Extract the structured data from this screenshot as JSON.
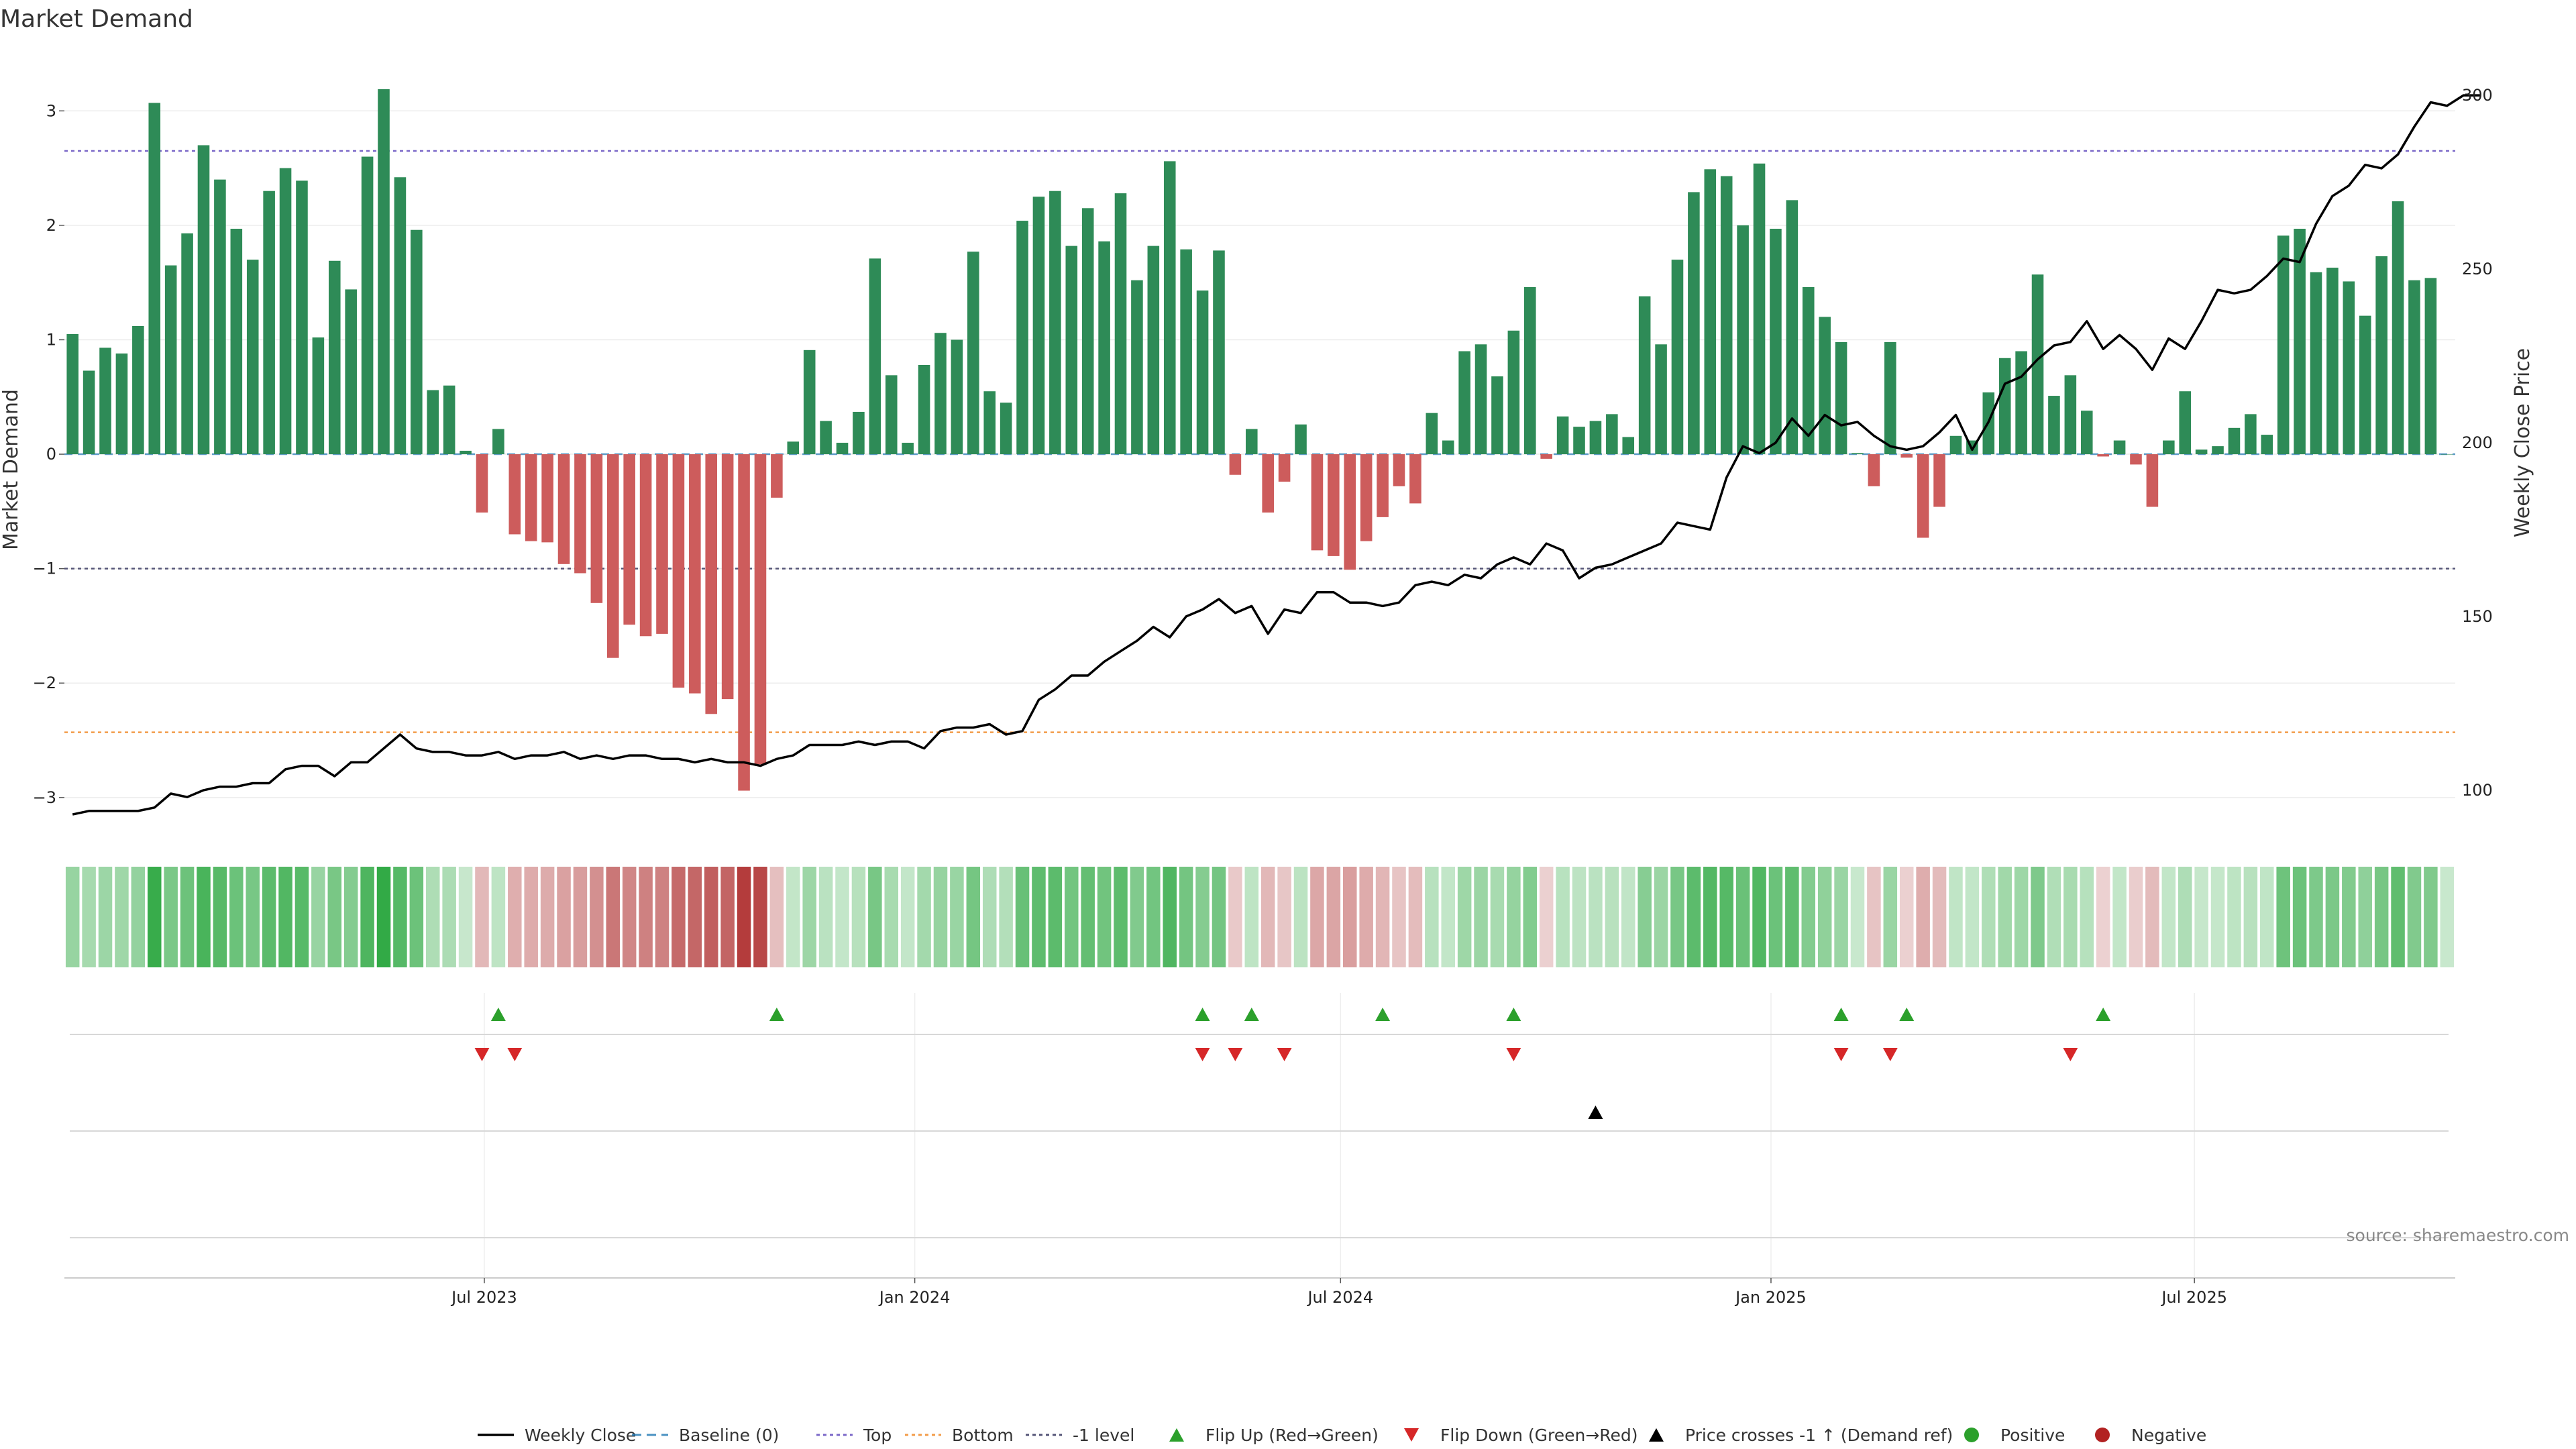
{
  "chart_data": {
    "type": "bar",
    "title": "Market Demand",
    "ylabel": "Market Demand",
    "y2label": "Weekly Close Price",
    "ylim": [
      -3.3,
      3.5
    ],
    "y2lim": [
      88,
      312
    ],
    "yticks": [
      -3,
      -2,
      -1,
      0,
      1,
      2,
      3
    ],
    "yticklabels": [
      "−3",
      "−2",
      "−1",
      "0",
      "1",
      "2",
      "3"
    ],
    "y2ticks": [
      100,
      150,
      200,
      250,
      300
    ],
    "y2ticklabels": [
      "100",
      "150",
      "200",
      "250",
      "300"
    ],
    "date_range": [
      "2023-01-06",
      "2025-10-17"
    ],
    "xticks": [
      {
        "date": "2023-07-01",
        "label": "Jul 2023"
      },
      {
        "date": "2024-01-01",
        "label": "Jan 2024"
      },
      {
        "date": "2024-07-01",
        "label": "Jul 2024"
      },
      {
        "date": "2025-01-01",
        "label": "Jan 2025"
      },
      {
        "date": "2025-07-01",
        "label": "Jul 2025"
      }
    ],
    "levels": {
      "baseline": 0,
      "top": 2.65,
      "bottom": -2.43,
      "minus_one": -1
    },
    "weeks": 146,
    "series": [
      {
        "name": "Market Demand",
        "values": [
          1.05,
          0.73,
          0.93,
          0.88,
          1.12,
          3.07,
          1.65,
          1.93,
          2.7,
          2.4,
          1.97,
          1.7,
          2.3,
          2.5,
          2.39,
          1.02,
          1.69,
          1.44,
          2.6,
          3.19,
          2.42,
          1.96,
          0.56,
          0.6,
          0.03,
          -0.51,
          0.22,
          -0.7,
          -0.76,
          -0.77,
          -0.96,
          -1.04,
          -1.3,
          -1.78,
          -1.49,
          -1.59,
          -1.57,
          -2.04,
          -2.09,
          -2.27,
          -2.14,
          -2.94,
          -2.71,
          -0.38,
          0.11,
          0.91,
          0.29,
          0.1,
          0.37,
          1.71,
          0.69,
          0.1,
          0.78,
          1.06,
          1.0,
          1.77,
          0.55,
          0.45,
          2.04,
          2.25,
          2.3,
          1.82,
          2.15,
          1.86,
          2.28,
          1.52,
          1.82,
          2.56,
          1.79,
          1.43,
          1.78,
          -0.18,
          0.22,
          -0.51,
          -0.24,
          0.26,
          -0.84,
          -0.89,
          -1.01,
          -0.76,
          -0.55,
          -0.28,
          -0.43,
          0.36,
          0.12,
          0.9,
          0.96,
          0.68,
          1.08,
          1.46,
          -0.04,
          0.33,
          0.24,
          0.29,
          0.35,
          0.15,
          1.38,
          0.96,
          1.7,
          2.29,
          2.49,
          2.43,
          2.0,
          2.54,
          1.97,
          2.22,
          1.46,
          1.2,
          0.98,
          0.01,
          -0.28,
          0.98,
          -0.03,
          -0.73,
          -0.46,
          0.16,
          0.12,
          0.54,
          0.84,
          0.9,
          1.57,
          0.51,
          0.69,
          0.38,
          -0.02,
          0.12,
          -0.09,
          -0.46,
          0.12,
          0.55,
          0.04,
          0.07,
          0.23,
          0.35,
          0.17,
          1.91,
          1.97,
          1.59,
          1.63,
          1.51,
          1.21,
          1.73,
          2.21,
          1.52,
          1.54,
          0.0
        ]
      },
      {
        "name": "Weekly Close",
        "values": [
          93,
          94,
          94,
          94,
          94,
          95,
          99,
          98,
          100,
          101,
          101,
          102,
          102,
          106,
          107,
          107,
          104,
          108,
          108,
          112,
          116,
          112,
          111,
          111,
          110,
          110,
          111,
          109,
          110,
          110,
          111,
          109,
          110,
          109,
          110,
          110,
          109,
          109,
          108,
          109,
          108,
          108,
          107,
          109,
          110,
          113,
          113,
          113,
          114,
          113,
          114,
          114,
          112,
          117,
          118,
          118,
          119,
          116,
          117,
          126,
          129,
          133,
          133,
          137,
          140,
          143,
          147,
          144,
          150,
          152,
          155,
          151,
          153,
          145,
          152,
          151,
          157,
          157,
          154,
          154,
          153,
          154,
          159,
          160,
          159,
          162,
          161,
          165,
          167,
          165,
          171,
          169,
          161,
          164,
          165,
          167,
          169,
          171,
          177,
          176,
          175,
          190,
          199,
          197,
          200,
          207,
          202,
          208,
          205,
          206,
          202,
          199,
          198,
          199,
          203,
          208,
          198,
          206,
          217,
          219,
          224,
          228,
          229,
          235,
          227,
          231,
          227,
          221,
          230,
          227,
          235,
          244,
          243,
          244,
          248,
          253,
          252,
          263,
          271,
          274,
          280,
          279,
          283,
          291,
          298,
          297,
          300,
          300
        ]
      }
    ],
    "flip_up_weeks": [
      26,
      43,
      69,
      72,
      80,
      88,
      108,
      112,
      124
    ],
    "flip_down_weeks": [
      25,
      27,
      69,
      71,
      74,
      88,
      108,
      111,
      122
    ],
    "price_cross_weeks": [
      93
    ],
    "legend": [
      {
        "label": "Weekly Close",
        "kind": "line",
        "color": "#000000"
      },
      {
        "label": "Baseline (0)",
        "kind": "dash",
        "color": "#1f77b4"
      },
      {
        "label": "Top",
        "kind": "dot",
        "color": "#7b68c8"
      },
      {
        "label": "Bottom",
        "kind": "dot",
        "color": "#f39c4a"
      },
      {
        "label": "-1 level",
        "kind": "dot",
        "color": "#555577"
      },
      {
        "label": "Flip Up (Red→Green)",
        "kind": "tri-up",
        "color": "#2ca02c"
      },
      {
        "label": "Flip Down (Green→Red)",
        "kind": "tri-down",
        "color": "#d62728"
      },
      {
        "label": "Price crosses -1 ↑ (Demand ref)",
        "kind": "tri-up",
        "color": "#000000"
      },
      {
        "label": "Positive",
        "kind": "circle",
        "color": "#2ca02c"
      },
      {
        "label": "Negative",
        "kind": "circle",
        "color": "#b22222"
      }
    ]
  },
  "colors": {
    "positive_bar": "#2e8b57",
    "negative_bar": "#cd5c5c",
    "price_line": "#000000",
    "top_line": "#7b68c8",
    "bottom_line": "#f39c4a",
    "minus_one_line": "#555577",
    "baseline": "#1f77b4"
  },
  "source_text": "source: sharemaestro.com"
}
